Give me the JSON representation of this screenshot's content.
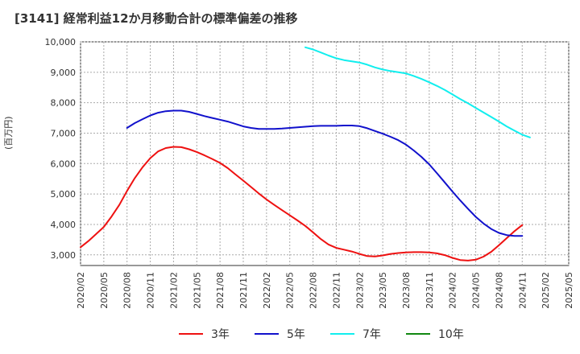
{
  "title": "[3141]  経常利益12か月移動合計の標準偏差の推移",
  "ylabel": "(百万円)",
  "colors": {
    "s3": "#ee1111",
    "s5": "#1111cc",
    "s7": "#11eeee",
    "s10": "#118811",
    "grid": "#aaaaaa"
  },
  "chart_data": {
    "type": "line",
    "title": "[3141]  経常利益12か月移動合計の標準偏差の推移",
    "xlabel": "",
    "ylabel": "(百万円)",
    "ylim": [
      2650,
      10000
    ],
    "yticks": [
      3000,
      4000,
      5000,
      6000,
      7000,
      8000,
      9000,
      10000
    ],
    "ytick_labels": [
      "3,000",
      "4,000",
      "5,000",
      "6,000",
      "7,000",
      "8,000",
      "9,000",
      "10,000"
    ],
    "xticks": [
      "2020/02",
      "2020/05",
      "2020/08",
      "2020/11",
      "2021/02",
      "2021/05",
      "2021/08",
      "2021/11",
      "2022/02",
      "2022/05",
      "2022/08",
      "2022/11",
      "2023/02",
      "2023/05",
      "2023/08",
      "2023/11",
      "2024/02",
      "2024/05",
      "2024/08",
      "2024/11",
      "2025/02",
      "2025/05"
    ],
    "grid": true,
    "legend_position": "bottom",
    "series": [
      {
        "name": "3年",
        "color": "#ee1111",
        "points": [
          [
            "2020/02",
            3250
          ],
          [
            "2020/03",
            3450
          ],
          [
            "2020/04",
            3680
          ],
          [
            "2020/05",
            3920
          ],
          [
            "2020/06",
            4260
          ],
          [
            "2020/07",
            4640
          ],
          [
            "2020/08",
            5100
          ],
          [
            "2020/09",
            5520
          ],
          [
            "2020/10",
            5880
          ],
          [
            "2020/11",
            6180
          ],
          [
            "2020/12",
            6400
          ],
          [
            "2021/01",
            6510
          ],
          [
            "2021/02",
            6550
          ],
          [
            "2021/03",
            6540
          ],
          [
            "2021/04",
            6470
          ],
          [
            "2021/05",
            6380
          ],
          [
            "2021/06",
            6270
          ],
          [
            "2021/07",
            6150
          ],
          [
            "2021/08",
            6020
          ],
          [
            "2021/09",
            5850
          ],
          [
            "2021/10",
            5640
          ],
          [
            "2021/11",
            5440
          ],
          [
            "2021/12",
            5230
          ],
          [
            "2022/01",
            5020
          ],
          [
            "2022/02",
            4820
          ],
          [
            "2022/03",
            4640
          ],
          [
            "2022/04",
            4470
          ],
          [
            "2022/05",
            4300
          ],
          [
            "2022/06",
            4130
          ],
          [
            "2022/07",
            3950
          ],
          [
            "2022/08",
            3740
          ],
          [
            "2022/09",
            3520
          ],
          [
            "2022/10",
            3340
          ],
          [
            "2022/11",
            3230
          ],
          [
            "2022/12",
            3170
          ],
          [
            "2023/01",
            3110
          ],
          [
            "2023/02",
            3030
          ],
          [
            "2023/03",
            2960
          ],
          [
            "2023/04",
            2950
          ],
          [
            "2023/05",
            2980
          ],
          [
            "2023/06",
            3030
          ],
          [
            "2023/07",
            3060
          ],
          [
            "2023/08",
            3080
          ],
          [
            "2023/09",
            3090
          ],
          [
            "2023/10",
            3090
          ],
          [
            "2023/11",
            3080
          ],
          [
            "2023/12",
            3050
          ],
          [
            "2024/01",
            2990
          ],
          [
            "2024/02",
            2900
          ],
          [
            "2024/03",
            2830
          ],
          [
            "2024/04",
            2810
          ],
          [
            "2024/05",
            2840
          ],
          [
            "2024/06",
            2940
          ],
          [
            "2024/07",
            3100
          ],
          [
            "2024/08",
            3320
          ],
          [
            "2024/09",
            3550
          ],
          [
            "2024/10",
            3780
          ],
          [
            "2024/11",
            3980
          ]
        ]
      },
      {
        "name": "5年",
        "color": "#1111cc",
        "points": [
          [
            "2020/08",
            7170
          ],
          [
            "2020/09",
            7330
          ],
          [
            "2020/10",
            7460
          ],
          [
            "2020/11",
            7580
          ],
          [
            "2020/12",
            7670
          ],
          [
            "2021/01",
            7720
          ],
          [
            "2021/02",
            7740
          ],
          [
            "2021/03",
            7740
          ],
          [
            "2021/04",
            7700
          ],
          [
            "2021/05",
            7630
          ],
          [
            "2021/06",
            7560
          ],
          [
            "2021/07",
            7500
          ],
          [
            "2021/08",
            7440
          ],
          [
            "2021/09",
            7380
          ],
          [
            "2021/10",
            7300
          ],
          [
            "2021/11",
            7220
          ],
          [
            "2021/12",
            7170
          ],
          [
            "2022/01",
            7140
          ],
          [
            "2022/02",
            7140
          ],
          [
            "2022/03",
            7140
          ],
          [
            "2022/04",
            7150
          ],
          [
            "2022/05",
            7170
          ],
          [
            "2022/06",
            7190
          ],
          [
            "2022/07",
            7210
          ],
          [
            "2022/08",
            7230
          ],
          [
            "2022/09",
            7240
          ],
          [
            "2022/10",
            7240
          ],
          [
            "2022/11",
            7240
          ],
          [
            "2022/12",
            7250
          ],
          [
            "2023/01",
            7250
          ],
          [
            "2023/02",
            7230
          ],
          [
            "2023/03",
            7160
          ],
          [
            "2023/04",
            7070
          ],
          [
            "2023/05",
            6980
          ],
          [
            "2023/06",
            6880
          ],
          [
            "2023/07",
            6770
          ],
          [
            "2023/08",
            6620
          ],
          [
            "2023/09",
            6430
          ],
          [
            "2023/10",
            6220
          ],
          [
            "2023/11",
            5970
          ],
          [
            "2023/12",
            5680
          ],
          [
            "2024/01",
            5380
          ],
          [
            "2024/02",
            5080
          ],
          [
            "2024/03",
            4790
          ],
          [
            "2024/04",
            4510
          ],
          [
            "2024/05",
            4250
          ],
          [
            "2024/06",
            4030
          ],
          [
            "2024/07",
            3850
          ],
          [
            "2024/08",
            3720
          ],
          [
            "2024/09",
            3650
          ],
          [
            "2024/10",
            3620
          ],
          [
            "2024/11",
            3620
          ]
        ]
      },
      {
        "name": "7年",
        "color": "#11eeee",
        "points": [
          [
            "2022/07",
            9820
          ],
          [
            "2022/08",
            9750
          ],
          [
            "2022/09",
            9650
          ],
          [
            "2022/10",
            9550
          ],
          [
            "2022/11",
            9460
          ],
          [
            "2022/12",
            9400
          ],
          [
            "2023/01",
            9360
          ],
          [
            "2023/02",
            9320
          ],
          [
            "2023/03",
            9250
          ],
          [
            "2023/04",
            9160
          ],
          [
            "2023/05",
            9090
          ],
          [
            "2023/06",
            9040
          ],
          [
            "2023/07",
            9000
          ],
          [
            "2023/08",
            8960
          ],
          [
            "2023/09",
            8880
          ],
          [
            "2023/10",
            8780
          ],
          [
            "2023/11",
            8670
          ],
          [
            "2023/12",
            8550
          ],
          [
            "2024/01",
            8420
          ],
          [
            "2024/02",
            8270
          ],
          [
            "2024/03",
            8120
          ],
          [
            "2024/04",
            7980
          ],
          [
            "2024/05",
            7830
          ],
          [
            "2024/06",
            7680
          ],
          [
            "2024/07",
            7530
          ],
          [
            "2024/08",
            7380
          ],
          [
            "2024/09",
            7220
          ],
          [
            "2024/10",
            7080
          ],
          [
            "2024/11",
            6950
          ],
          [
            "2024/12",
            6860
          ]
        ]
      },
      {
        "name": "10年",
        "color": "#118811",
        "points": []
      }
    ]
  }
}
